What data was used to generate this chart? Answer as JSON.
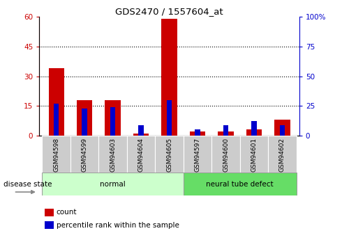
{
  "title": "GDS2470 / 1557604_at",
  "samples": [
    "GSM94598",
    "GSM94599",
    "GSM94603",
    "GSM94604",
    "GSM94605",
    "GSM94597",
    "GSM94600",
    "GSM94601",
    "GSM94602"
  ],
  "count_values": [
    34,
    18,
    18,
    1,
    59,
    2,
    2,
    3,
    8
  ],
  "percentile_values": [
    27,
    23,
    24,
    9,
    30,
    5,
    9,
    12,
    9
  ],
  "groups": [
    {
      "label": "normal",
      "start": 0,
      "end": 5,
      "color": "#ccffcc"
    },
    {
      "label": "neural tube defect",
      "start": 5,
      "end": 9,
      "color": "#66dd66"
    }
  ],
  "left_ylim": [
    0,
    60
  ],
  "right_ylim": [
    0,
    100
  ],
  "left_yticks": [
    0,
    15,
    30,
    45,
    60
  ],
  "right_yticks": [
    0,
    25,
    50,
    75,
    100
  ],
  "right_yticklabels": [
    "0",
    "25",
    "50",
    "75",
    "100%"
  ],
  "grid_values": [
    15,
    30,
    45
  ],
  "bar_color_red": "#cc0000",
  "bar_color_blue": "#0000cc",
  "red_bar_width": 0.55,
  "blue_bar_width": 0.18,
  "sample_box_color": "#cccccc",
  "legend_count_label": "count",
  "legend_pct_label": "percentile rank within the sample",
  "disease_state_label": "disease state"
}
